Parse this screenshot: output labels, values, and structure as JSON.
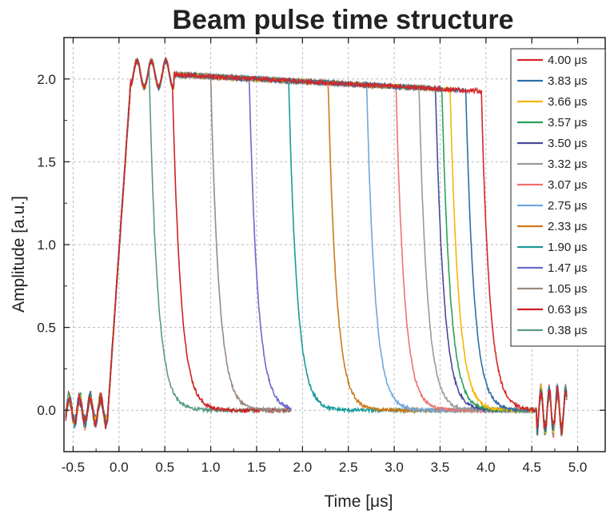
{
  "chart_data": {
    "type": "line",
    "title": "Beam pulse time structure",
    "xlabel": "Time [μs]",
    "ylabel": "Amplitude [a.u.]",
    "xlim": [
      -0.6,
      5.3
    ],
    "ylim": [
      -0.25,
      2.25
    ],
    "x_ticks": [
      -0.5,
      0.0,
      0.5,
      1.0,
      1.5,
      2.0,
      2.5,
      3.0,
      3.5,
      4.0,
      4.5,
      5.0
    ],
    "x_tick_labels": [
      "-0.5",
      "0.0",
      "0.5",
      "1.0",
      "1.5",
      "2.0",
      "2.5",
      "3.0",
      "3.5",
      "4.0",
      "4.5",
      "5.0"
    ],
    "y_ticks": [
      0.0,
      0.5,
      1.0,
      1.5,
      2.0
    ],
    "y_tick_labels": [
      "0.0",
      "0.5",
      "1.0",
      "1.5",
      "2.0"
    ],
    "grid": true,
    "legend_position": "top-right",
    "series": [
      {
        "name": "4.00 μs",
        "pulse_length": 4.0,
        "color": "#d62728",
        "end_time": 4.88
      },
      {
        "name": "3.83 μs",
        "pulse_length": 3.83,
        "color": "#2f6ea5",
        "end_time": 4.88
      },
      {
        "name": "3.66 μs",
        "pulse_length": 3.66,
        "color": "#f2b705",
        "end_time": 4.88
      },
      {
        "name": "3.57 μs",
        "pulse_length": 3.57,
        "color": "#2ca05a",
        "end_time": 4.88
      },
      {
        "name": "3.50 μs",
        "pulse_length": 3.5,
        "color": "#4a4a9a",
        "end_time": 4.88
      },
      {
        "name": "3.32 μs",
        "pulse_length": 3.32,
        "color": "#9a9a9a",
        "end_time": 4.88
      },
      {
        "name": "3.07 μs",
        "pulse_length": 3.07,
        "color": "#f07070",
        "end_time": 4.88
      },
      {
        "name": "2.75 μs",
        "pulse_length": 2.75,
        "color": "#6fa8dc",
        "end_time": 4.88
      },
      {
        "name": "2.33 μs",
        "pulse_length": 2.33,
        "color": "#cc7a1a",
        "end_time": 4.88
      },
      {
        "name": "1.90 μs",
        "pulse_length": 1.9,
        "color": "#1a9a9a",
        "end_time": 4.88
      },
      {
        "name": "1.47 μs",
        "pulse_length": 1.47,
        "color": "#6a6acc",
        "end_time": 1.88
      },
      {
        "name": "1.05 μs",
        "pulse_length": 1.05,
        "color": "#9a8a80",
        "end_time": 1.88
      },
      {
        "name": "0.63 μs",
        "pulse_length": 0.63,
        "color": "#cc2222",
        "end_time": 1.88
      },
      {
        "name": "0.38 μs",
        "pulse_length": 0.38,
        "color": "#5a9a8a",
        "end_time": 1.88
      }
    ]
  }
}
